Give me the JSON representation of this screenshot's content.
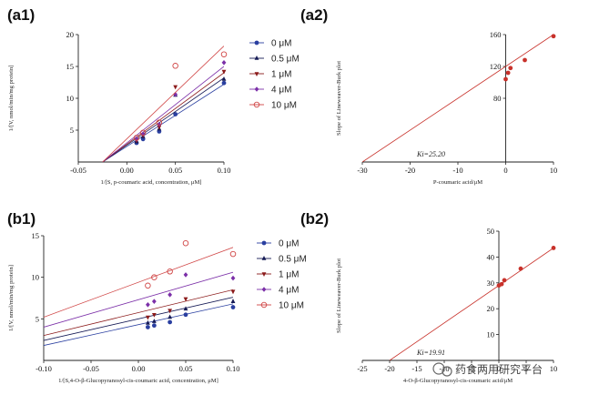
{
  "watermark": {
    "text": "药食两用研究平台"
  },
  "chart_data": [
    {
      "id": "a1",
      "type": "scatter",
      "panel_label": "(a1)",
      "xlabel": "1/[S, p-coumaric acid, concentration, μM]",
      "ylabel": "1/[V, nmol/min/mg protein]",
      "xlim": [
        -0.05,
        0.1
      ],
      "ylim": [
        0,
        20
      ],
      "xticks": [
        -0.05,
        0,
        0.05,
        0.1
      ],
      "xtick_labels": [
        "-0.05",
        "0.00",
        "0.05",
        "0.10"
      ],
      "yticks": [
        5,
        10,
        15,
        20
      ],
      "ytick_labels": [
        "5",
        "10",
        "15",
        "20"
      ],
      "legend_position": "right",
      "series": [
        {
          "name": "0 μM",
          "color": "#2a3fa0",
          "marker": "circle-filled",
          "x": [
            0.01,
            0.0167,
            0.0333,
            0.05,
            0.1
          ],
          "y": [
            3.0,
            3.6,
            4.8,
            7.5,
            12.4
          ],
          "line": {
            "x": [
              -0.025,
              0.1
            ],
            "y": [
              0,
              12.2
            ]
          }
        },
        {
          "name": "0.5 μM",
          "color": "#151a55",
          "marker": "triangle-up",
          "x": [
            0.01,
            0.0167,
            0.0333,
            0.05,
            0.1
          ],
          "y": [
            3.2,
            4.0,
            5.2,
            10.5,
            13.0
          ],
          "line": {
            "x": [
              -0.025,
              0.1
            ],
            "y": [
              0,
              13.2
            ]
          }
        },
        {
          "name": "1 μM",
          "color": "#8b1a1a",
          "marker": "triangle-down",
          "x": [
            0.01,
            0.0167,
            0.0333,
            0.05,
            0.1
          ],
          "y": [
            3.4,
            4.2,
            5.5,
            11.8,
            14.2
          ],
          "line": {
            "x": [
              -0.025,
              0.1
            ],
            "y": [
              0,
              14.0
            ]
          }
        },
        {
          "name": "4 μM",
          "color": "#7b2fa8",
          "marker": "diamond",
          "x": [
            0.01,
            0.0167,
            0.0333,
            0.05,
            0.1
          ],
          "y": [
            3.6,
            4.4,
            5.9,
            10.6,
            15.6
          ],
          "line": {
            "x": [
              -0.025,
              0.1
            ],
            "y": [
              0,
              15.0
            ]
          }
        },
        {
          "name": "10 μM",
          "color": "#d04545",
          "marker": "circle-open",
          "x": [
            0.01,
            0.0167,
            0.0333,
            0.05,
            0.1
          ],
          "y": [
            3.8,
            4.6,
            6.2,
            15.1,
            16.9
          ],
          "line": {
            "x": [
              -0.025,
              0.1
            ],
            "y": [
              0,
              18.2
            ]
          }
        }
      ]
    },
    {
      "id": "a2",
      "type": "scatter",
      "panel_label": "(a2)",
      "xlabel": "P-coumaric acid/μM",
      "ylabel": "Slope of Lineweaver-Burk plot",
      "annotation": "Ki=25.20",
      "xlim": [
        -30,
        10
      ],
      "ylim": [
        0,
        160
      ],
      "xticks": [
        -30,
        -20,
        -10,
        0,
        10
      ],
      "xtick_labels": [
        "-30",
        "-20",
        "-10",
        "0",
        "10"
      ],
      "yticks": [
        80,
        120,
        160
      ],
      "ytick_labels": [
        "80",
        "120",
        "160"
      ],
      "axes_cross_at_x0": true,
      "series": [
        {
          "name": "",
          "color": "#c8322b",
          "marker": "circle-filled",
          "x": [
            0,
            0.5,
            1,
            4,
            10
          ],
          "y": [
            104,
            112,
            118,
            128,
            158
          ],
          "line": {
            "x": [
              -30,
              10
            ],
            "y": [
              0,
              160
            ]
          }
        }
      ]
    },
    {
      "id": "b1",
      "type": "scatter",
      "panel_label": "(b1)",
      "xlabel": "1/[S,4-O-β-Glucopyranosyl-cis-coumaric acid, concentration, μM]",
      "ylabel": "1/[V, nmol/min/mg protein]",
      "xlim": [
        -0.1,
        0.1
      ],
      "ylim": [
        0,
        15
      ],
      "xticks": [
        -0.1,
        -0.05,
        0,
        0.05,
        0.1
      ],
      "xtick_labels": [
        "-0.10",
        "-0.05",
        "0.00",
        "0.05",
        "0.10"
      ],
      "yticks": [
        5,
        10,
        15
      ],
      "ytick_labels": [
        "5",
        "10",
        "15"
      ],
      "legend_position": "right",
      "series": [
        {
          "name": "0 μM",
          "color": "#2a3fa0",
          "marker": "circle-filled",
          "x": [
            0.01,
            0.0167,
            0.0333,
            0.05,
            0.1
          ],
          "y": [
            4.0,
            4.2,
            4.6,
            5.5,
            6.4
          ],
          "line": {
            "x": [
              -0.1,
              0.1
            ],
            "y": [
              1.8,
              6.8
            ]
          }
        },
        {
          "name": "0.5 μM",
          "color": "#151a55",
          "marker": "triangle-up",
          "x": [
            0.01,
            0.0167,
            0.0333,
            0.05,
            0.1
          ],
          "y": [
            4.5,
            4.7,
            5.2,
            6.2,
            7.1
          ],
          "line": {
            "x": [
              -0.1,
              0.1
            ],
            "y": [
              2.4,
              7.6
            ]
          }
        },
        {
          "name": "1 μM",
          "color": "#8b1a1a",
          "marker": "triangle-down",
          "x": [
            0.01,
            0.0167,
            0.0333,
            0.05,
            0.1
          ],
          "y": [
            5.2,
            5.5,
            6.0,
            7.4,
            8.3
          ],
          "line": {
            "x": [
              -0.1,
              0.1
            ],
            "y": [
              3.0,
              8.5
            ]
          }
        },
        {
          "name": "4 μM",
          "color": "#7b2fa8",
          "marker": "diamond",
          "x": [
            0.01,
            0.0167,
            0.0333,
            0.05,
            0.1
          ],
          "y": [
            6.7,
            7.1,
            7.9,
            10.3,
            9.9
          ],
          "line": {
            "x": [
              -0.1,
              0.1
            ],
            "y": [
              4.0,
              10.6
            ]
          }
        },
        {
          "name": "10 μM",
          "color": "#d04545",
          "marker": "circle-open",
          "x": [
            0.01,
            0.0167,
            0.0333,
            0.05,
            0.1
          ],
          "y": [
            9.0,
            10.0,
            10.7,
            14.1,
            12.8
          ],
          "line": {
            "x": [
              -0.1,
              0.1
            ],
            "y": [
              5.2,
              13.6
            ]
          }
        }
      ]
    },
    {
      "id": "b2",
      "type": "scatter",
      "panel_label": "(b2)",
      "xlabel": "4-O-β-Glucopyranosyl-cis-coumaric acid/μM",
      "ylabel": "Slope of Lineweaver-Burk plot",
      "annotation": "Ki=19.91",
      "xlim": [
        -25,
        10
      ],
      "ylim": [
        0,
        50
      ],
      "xticks": [
        -25,
        -20,
        -15,
        -10,
        -5,
        0,
        5,
        10
      ],
      "xtick_labels": [
        "-25",
        "-20",
        "-15",
        "-10",
        "-5",
        "0",
        "5",
        "10"
      ],
      "yticks": [
        10,
        20,
        30,
        40,
        50
      ],
      "ytick_labels": [
        "10",
        "20",
        "30",
        "40",
        "50"
      ],
      "axes_cross_at_x0": true,
      "series": [
        {
          "name": "",
          "color": "#c8322b",
          "marker": "circle-filled",
          "x": [
            0,
            0.5,
            1,
            4,
            10
          ],
          "y": [
            29,
            29.5,
            31,
            35.5,
            43.5
          ],
          "line": {
            "x": [
              -20,
              10
            ],
            "y": [
              0,
              43.5
            ]
          }
        }
      ]
    }
  ]
}
